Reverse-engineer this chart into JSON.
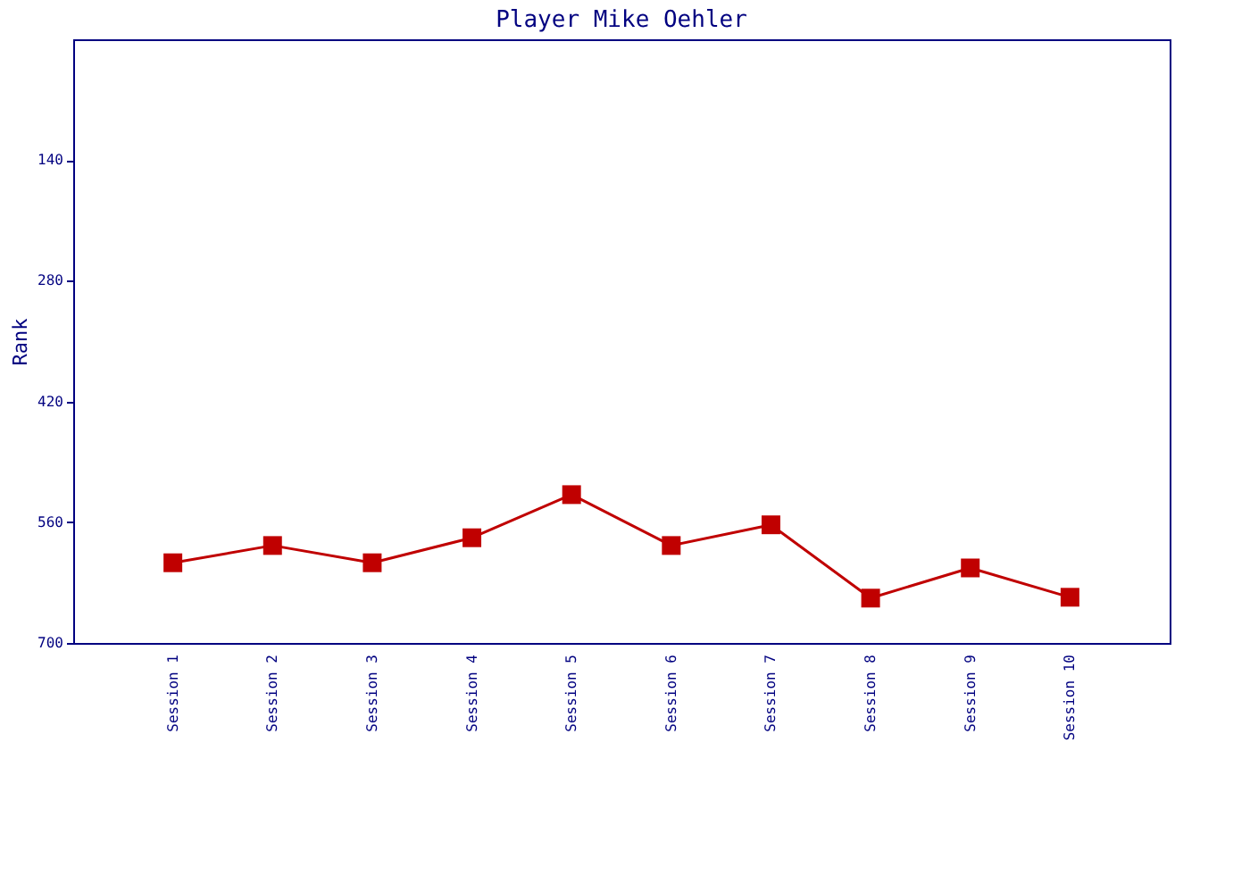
{
  "chart_data": {
    "type": "line",
    "title": "Player Mike Oehler",
    "ylabel": "Rank",
    "categories": [
      "Session 1",
      "Session 2",
      "Session 3",
      "Session 4",
      "Session 5",
      "Session 6",
      "Session 7",
      "Session 8",
      "Session 9",
      "Session 10"
    ],
    "series": [
      {
        "color": "#c00000",
        "values": [
          607,
          587,
          607,
          578,
          528,
          587,
          563,
          648,
          613,
          647
        ]
      }
    ],
    "ylim": [
      700,
      0
    ],
    "yticks": [
      140,
      280,
      420,
      560,
      700
    ],
    "grid": false,
    "marker": "square",
    "line_style": "solid"
  }
}
